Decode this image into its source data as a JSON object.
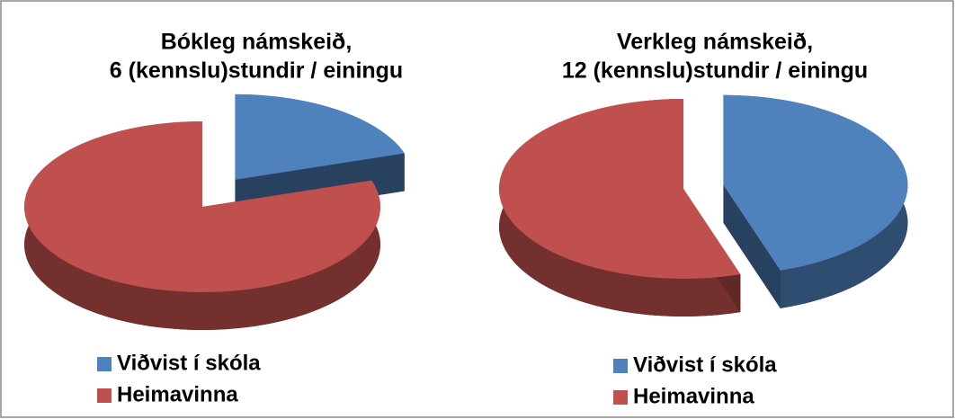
{
  "chart_data": [
    {
      "type": "pie",
      "title_lines": [
        "Bókleg námskeið,",
        "6 (kennslu)stundir  / einingu"
      ],
      "categories": [
        "Viðvist í skóla",
        "Heimavinna"
      ],
      "values": [
        20,
        80
      ],
      "colors": [
        "#4f81bd",
        "#c0504d"
      ],
      "explode": [
        0
      ]
    },
    {
      "type": "pie",
      "title_lines": [
        "Verkleg námskeið,",
        "12 (kennslu)stundir  / einingu"
      ],
      "categories": [
        "Viðvist í skóla",
        "Heimavinna"
      ],
      "values": [
        45,
        55
      ],
      "colors": [
        "#4f81bd",
        "#c0504d"
      ],
      "explode": [
        0
      ]
    }
  ]
}
